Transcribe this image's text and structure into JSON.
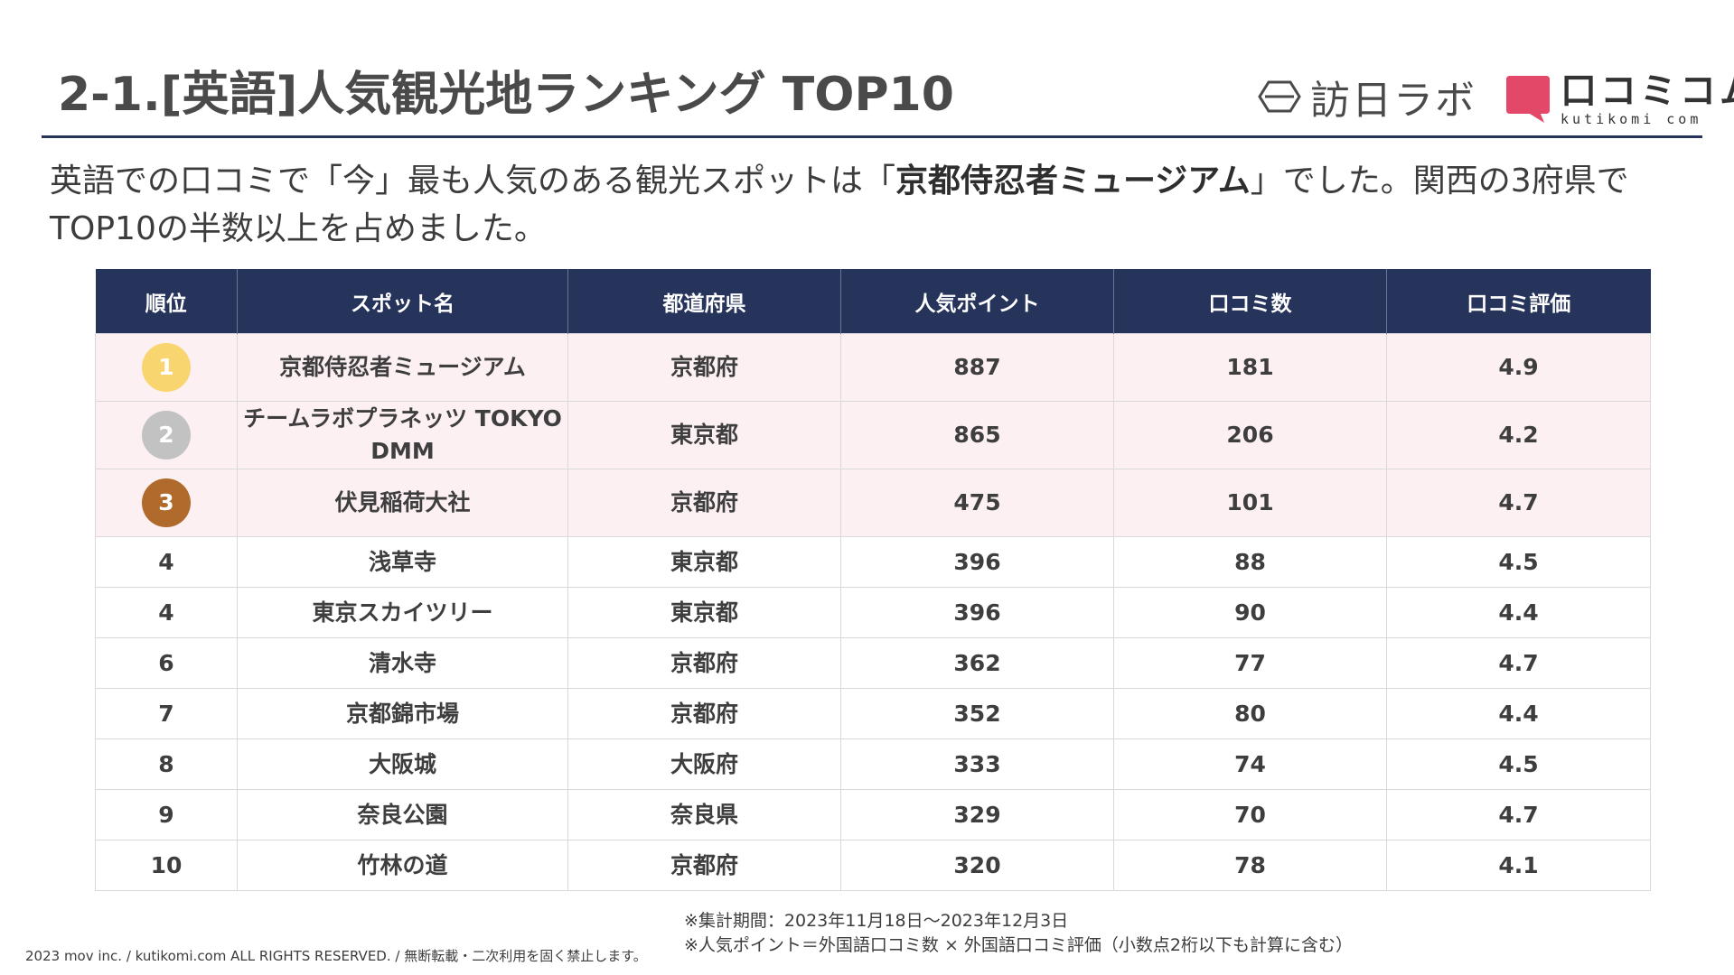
{
  "header": {
    "title": "2-1.[英語]人気観光地ランキング TOP10",
    "logo_houn": "訪日ラボ",
    "logo_kutikomi": "口コミコム",
    "logo_kutikomi_sub": "kutikomi com"
  },
  "lead": {
    "part1": "英語での口コミで「今」最も人気のある観光スポットは「",
    "highlight": "京都侍忍者ミュージアム",
    "part2": "」でした。関西の3府県でTOP10の半数以上を占めました。"
  },
  "table": {
    "headers": [
      "順位",
      "スポット名",
      "都道府県",
      "人気ポイント",
      "口コミ数",
      "口コミ評価"
    ],
    "rows": [
      {
        "rank": "1",
        "spot": "京都侍忍者ミュージアム",
        "pref": "京都府",
        "points": "887",
        "reviews": "181",
        "rating": "4.9"
      },
      {
        "rank": "2",
        "spot": "チームラボプラネッツ TOKYO DMM",
        "pref": "東京都",
        "points": "865",
        "reviews": "206",
        "rating": "4.2"
      },
      {
        "rank": "3",
        "spot": "伏見稲荷大社",
        "pref": "京都府",
        "points": "475",
        "reviews": "101",
        "rating": "4.7"
      },
      {
        "rank": "4",
        "spot": "浅草寺",
        "pref": "東京都",
        "points": "396",
        "reviews": "88",
        "rating": "4.5"
      },
      {
        "rank": "4",
        "spot": "東京スカイツリー",
        "pref": "東京都",
        "points": "396",
        "reviews": "90",
        "rating": "4.4"
      },
      {
        "rank": "6",
        "spot": "清水寺",
        "pref": "京都府",
        "points": "362",
        "reviews": "77",
        "rating": "4.7"
      },
      {
        "rank": "7",
        "spot": "京都錦市場",
        "pref": "京都府",
        "points": "352",
        "reviews": "80",
        "rating": "4.4"
      },
      {
        "rank": "8",
        "spot": "大阪城",
        "pref": "大阪府",
        "points": "333",
        "reviews": "74",
        "rating": "4.5"
      },
      {
        "rank": "9",
        "spot": "奈良公園",
        "pref": "奈良県",
        "points": "329",
        "reviews": "70",
        "rating": "4.7"
      },
      {
        "rank": "10",
        "spot": "竹林の道",
        "pref": "京都府",
        "points": "320",
        "reviews": "78",
        "rating": "4.1"
      }
    ]
  },
  "badge_colors": [
    "#f8d56e",
    "#c2c2c2",
    "#b06a2c"
  ],
  "colors": {
    "header_bg": "#26335a",
    "top3_bg": "#fdf0f3",
    "kutikomi_pink": "#e44869"
  },
  "notes": {
    "period": "※集計期間：2023年11月18日〜2023年12月3日",
    "formula": "※人気ポイント＝外国語口コミ数 × 外国語口コミ評価（小数点2桁以下も計算に含む）"
  },
  "copyright": "2023 mov inc. / kutikomi.com ALL RIGHTS RESERVED. / 無断転載・二次利用を固く禁止します。"
}
